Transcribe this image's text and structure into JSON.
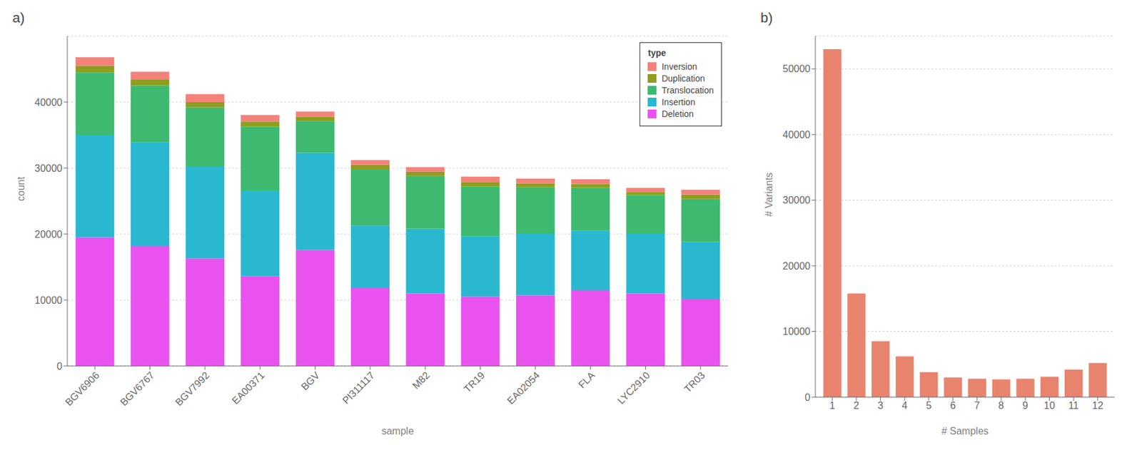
{
  "chart_data": [
    {
      "type": "bar",
      "title": "a)",
      "stacked": true,
      "categories": [
        "BGV6906",
        "BGV6767",
        "BGV7992",
        "EA00371",
        "BGV",
        "PI311117",
        "M82",
        "TR19",
        "EA02054",
        "FLA",
        "LYC2910",
        "TR03"
      ],
      "series": [
        {
          "name": "Deletion",
          "color": "#ea52f0",
          "values": [
            19500,
            18200,
            16300,
            13600,
            17600,
            11800,
            11000,
            10500,
            10700,
            11500,
            11000,
            10200
          ]
        },
        {
          "name": "Insertion",
          "color": "#29b8d0",
          "values": [
            15500,
            15700,
            13900,
            13000,
            14700,
            9500,
            9800,
            9200,
            9400,
            9000,
            9100,
            8600
          ]
        },
        {
          "name": "Translocation",
          "color": "#3dba6f",
          "values": [
            9500,
            8600,
            9000,
            9700,
            4800,
            8500,
            8000,
            7500,
            7000,
            6500,
            5800,
            6500
          ]
        },
        {
          "name": "Duplication",
          "color": "#8d9e20",
          "values": [
            1000,
            900,
            800,
            750,
            650,
            700,
            650,
            700,
            600,
            600,
            500,
            700
          ]
        },
        {
          "name": "Inversion",
          "color": "#f4827a",
          "values": [
            1300,
            1200,
            1200,
            1000,
            800,
            700,
            700,
            800,
            700,
            700,
            600,
            700
          ]
        }
      ],
      "xlabel": "sample",
      "ylabel": "count",
      "ylim": [
        0,
        50000
      ],
      "yticks": [
        0,
        10000,
        20000,
        30000,
        40000
      ],
      "grid": true,
      "legend": "upper right",
      "legend_title": "type"
    },
    {
      "type": "bar",
      "title": "b)",
      "x": [
        1,
        2,
        3,
        4,
        5,
        6,
        7,
        8,
        9,
        10,
        11,
        12
      ],
      "values": [
        53000,
        15800,
        8500,
        6200,
        3800,
        3000,
        2800,
        2700,
        2800,
        3100,
        4200,
        5200
      ],
      "color": "#e8846e",
      "xlabel": "# Samples",
      "ylabel": "# Variants",
      "xlim": [
        0.3,
        12.7
      ],
      "xticks": [
        1,
        2,
        3,
        4,
        5,
        6,
        7,
        8,
        9,
        10,
        11,
        12
      ],
      "ylim": [
        0,
        55000
      ],
      "yticks": [
        0,
        10000,
        20000,
        30000,
        40000,
        50000
      ],
      "grid": true
    }
  ]
}
